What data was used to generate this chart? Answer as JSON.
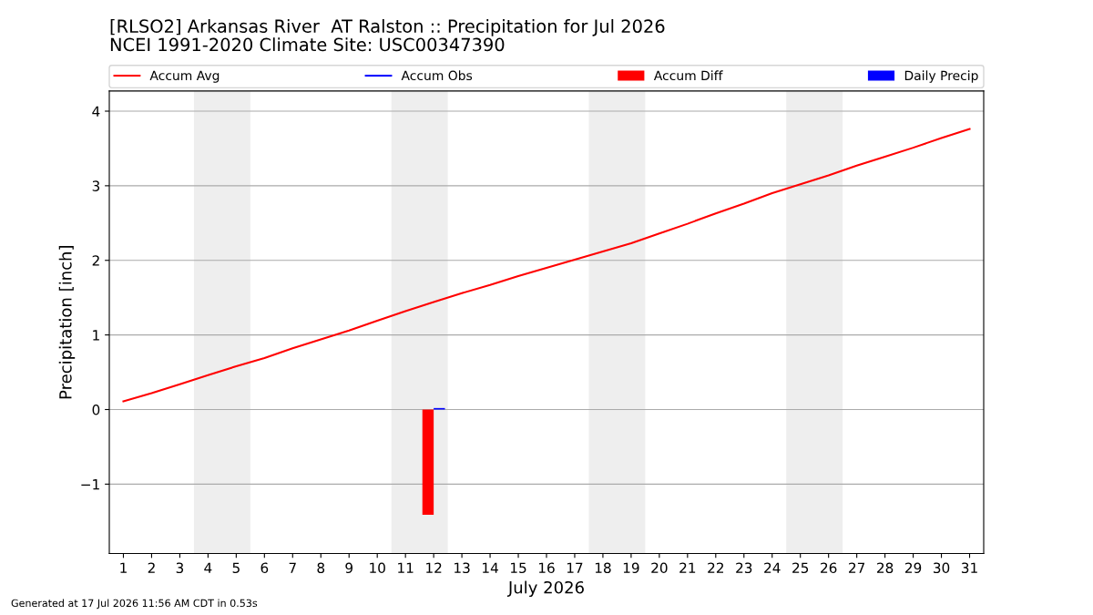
{
  "chart_data": {
    "type": "line",
    "title": "[RLSO2] Arkansas River  AT Ralston :: Precipitation for Jul 2026",
    "subtitle": "NCEI 1991-2020 Climate Site: USC00347390",
    "xlabel": "July 2026",
    "ylabel": "Precipitation [inch]",
    "x": [
      1,
      2,
      3,
      4,
      5,
      6,
      7,
      8,
      9,
      10,
      11,
      12,
      13,
      14,
      15,
      16,
      17,
      18,
      19,
      20,
      21,
      22,
      23,
      24,
      25,
      26,
      27,
      28,
      29,
      30,
      31
    ],
    "series": [
      {
        "name": "Accum Avg",
        "color": "#ff0000",
        "values": [
          0.11,
          0.22,
          0.34,
          0.46,
          0.58,
          0.69,
          0.82,
          0.94,
          1.06,
          1.19,
          1.32,
          1.44,
          1.56,
          1.67,
          1.79,
          1.9,
          2.01,
          2.12,
          2.23,
          2.36,
          2.49,
          2.63,
          2.76,
          2.9,
          3.02,
          3.14,
          3.27,
          3.39,
          3.51,
          3.64,
          3.76
        ]
      },
      {
        "name": "Accum Obs",
        "color": "#0000ff",
        "values": [
          null,
          null,
          null,
          null,
          null,
          null,
          null,
          null,
          null,
          null,
          null,
          null,
          null,
          null,
          null,
          null,
          null,
          null,
          null,
          null,
          null,
          null,
          null,
          null,
          null,
          null,
          null,
          null,
          null,
          null,
          null
        ]
      },
      {
        "name": "Accum Diff",
        "type": "bar",
        "color": "#ff0000",
        "values": [
          null,
          null,
          null,
          null,
          null,
          null,
          null,
          null,
          null,
          null,
          null,
          -1.41,
          null,
          null,
          null,
          null,
          null,
          null,
          null,
          null,
          null,
          null,
          null,
          null,
          null,
          null,
          null,
          null,
          null,
          null,
          null
        ]
      },
      {
        "name": "Daily Precip",
        "type": "bar",
        "color": "#0000ff",
        "values": [
          null,
          null,
          null,
          null,
          null,
          null,
          null,
          null,
          null,
          null,
          null,
          0.02,
          null,
          null,
          null,
          null,
          null,
          null,
          null,
          null,
          null,
          null,
          null,
          null,
          null,
          null,
          null,
          null,
          null,
          null,
          null
        ]
      }
    ],
    "xlim": [
      0.5,
      31.5
    ],
    "xticks": [
      1,
      2,
      3,
      4,
      5,
      6,
      7,
      8,
      9,
      10,
      11,
      12,
      13,
      14,
      15,
      16,
      17,
      18,
      19,
      20,
      21,
      22,
      23,
      24,
      25,
      26,
      27,
      28,
      29,
      30,
      31
    ],
    "ylim": [
      -1.93,
      4.27
    ],
    "yticks": [
      {
        "value": -1,
        "label": "−1"
      },
      0,
      1,
      2,
      3,
      4
    ],
    "bands": [
      {
        "axis": "x",
        "from": 3.5,
        "to": 5.5,
        "color": "#eeeeee"
      },
      {
        "axis": "x",
        "from": 10.5,
        "to": 12.5,
        "color": "#eeeeee"
      },
      {
        "axis": "x",
        "from": 17.5,
        "to": 19.5,
        "color": "#eeeeee"
      },
      {
        "axis": "x",
        "from": 24.5,
        "to": 26.5,
        "color": "#eeeeee"
      }
    ],
    "grid": "y",
    "legend": "top",
    "annotations": [
      "Generated at 17 Jul 2026 11:56 AM CDT in 0.53s"
    ]
  }
}
